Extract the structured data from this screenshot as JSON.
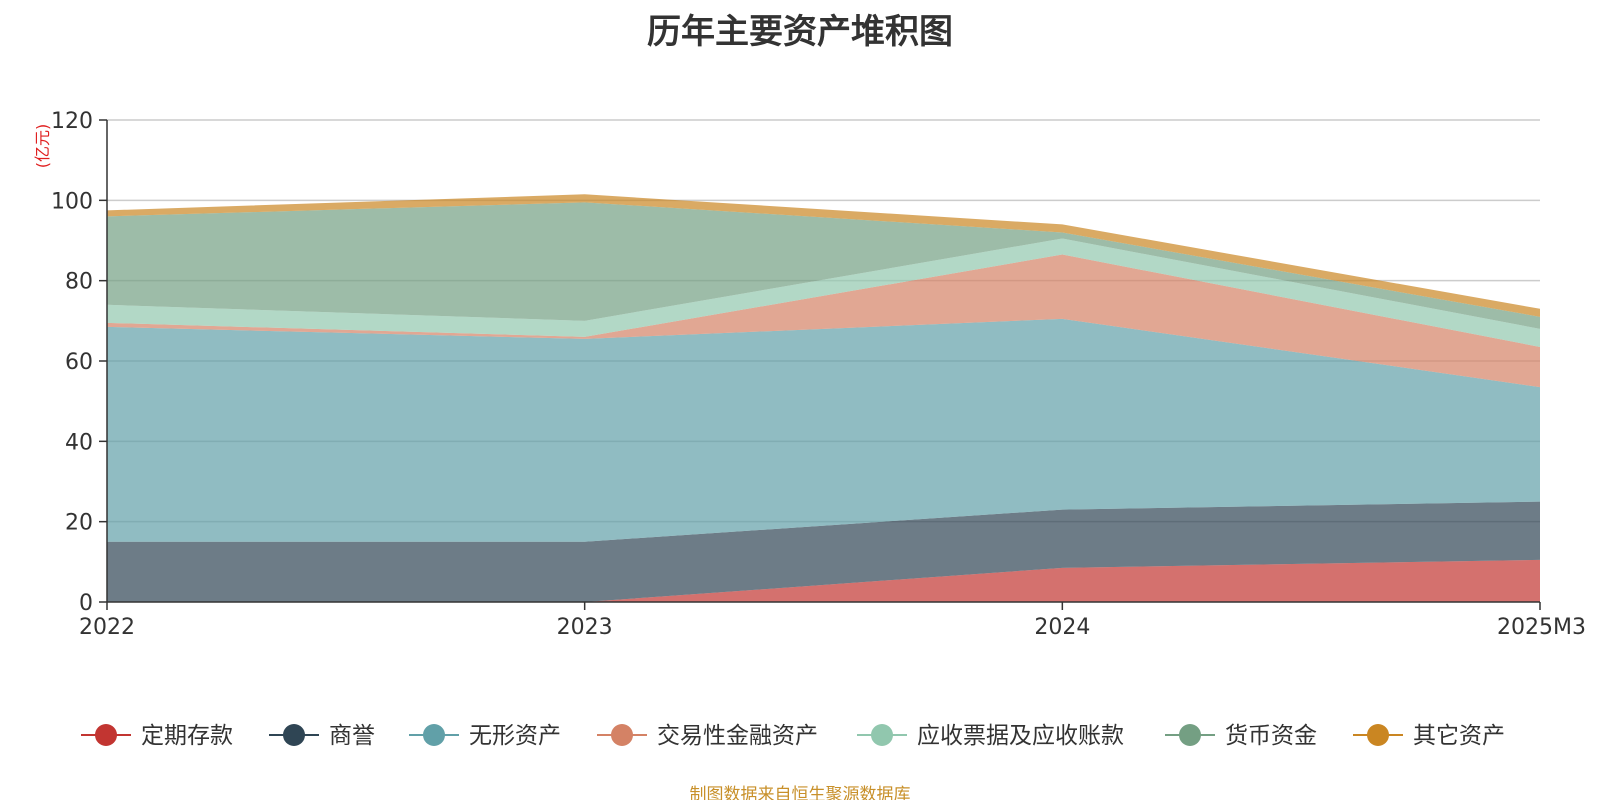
{
  "chart_data": {
    "type": "area",
    "stacked": true,
    "title": "历年主要资产堆积图",
    "ylabel": "(亿元)",
    "categories": [
      "2022",
      "2023",
      "2024",
      "2025M3"
    ],
    "ylim": [
      0,
      120
    ],
    "yticks": [
      0,
      20,
      40,
      60,
      80,
      100,
      120
    ],
    "grid": true,
    "legend_position": "bottom",
    "series": [
      {
        "name": "定期存款",
        "color": "#c23531",
        "values": [
          0,
          0,
          8.5,
          10.5
        ]
      },
      {
        "name": "商誉",
        "color": "#2f4554",
        "values": [
          15,
          15,
          14.5,
          14.5
        ]
      },
      {
        "name": "无形资产",
        "color": "#61a0a8",
        "values": [
          53.5,
          50.5,
          47.5,
          28.5
        ]
      },
      {
        "name": "交易性金融资产",
        "color": "#d48265",
        "values": [
          1,
          0.5,
          16,
          10
        ]
      },
      {
        "name": "应收票据及应收账款",
        "color": "#91c7ae",
        "values": [
          4.5,
          4,
          4,
          4.5
        ]
      },
      {
        "name": "货币资金",
        "color": "#749f83",
        "values": [
          22,
          29.5,
          1.5,
          3
        ]
      },
      {
        "name": "其它资产",
        "color": "#ca8622",
        "values": [
          1.5,
          2,
          2,
          2
        ]
      }
    ]
  },
  "source_note": "制图数据来自恒生聚源数据库"
}
